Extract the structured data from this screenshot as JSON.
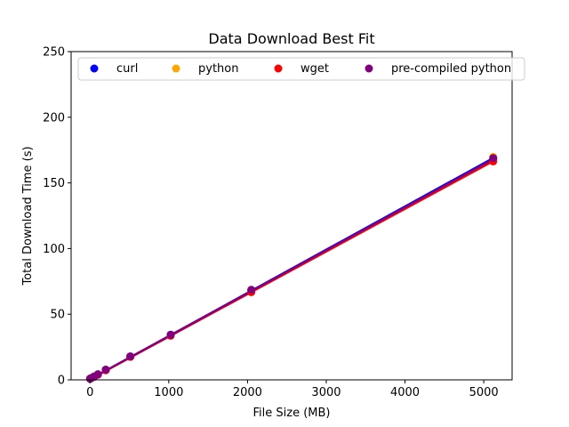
{
  "chart_data": {
    "type": "scatter",
    "title": "Data Download Best Fit",
    "xlabel": "File Size (MB)",
    "ylabel": "Total Download Time (s)",
    "xlim": [
      -240,
      5360
    ],
    "ylim": [
      0,
      250
    ],
    "xticks": [
      0,
      1000,
      2000,
      3000,
      4000,
      5000
    ],
    "yticks": [
      0,
      50,
      100,
      150,
      200,
      250
    ],
    "grid": false,
    "legend_placement": "top (upper center)",
    "x": [
      1,
      10,
      50,
      100,
      200,
      512,
      1024,
      2048,
      5120
    ],
    "series": [
      {
        "name": "curl",
        "color": "#0000ff",
        "values": [
          0.8,
          1.1,
          2.2,
          4.0,
          7.5,
          17.8,
          34.3,
          68.2,
          168.0
        ],
        "fit": [
          0.5,
          169.0
        ]
      },
      {
        "name": "python",
        "color": "#ffa500",
        "values": [
          0.9,
          1.2,
          2.4,
          4.1,
          7.7,
          17.6,
          34.0,
          67.8,
          169.8
        ],
        "fit": [
          0.4,
          167.8
        ]
      },
      {
        "name": "wget",
        "color": "#ff0000",
        "values": [
          0.8,
          1.1,
          2.3,
          3.9,
          7.3,
          17.5,
          33.6,
          66.8,
          166.4
        ],
        "fit": [
          0.3,
          166.5
        ]
      },
      {
        "name": "pre-compiled python",
        "color": "#800080",
        "values": [
          0.9,
          1.3,
          2.5,
          4.3,
          7.8,
          17.9,
          34.4,
          68.6,
          168.9
        ],
        "fit": [
          0.6,
          168.0
        ]
      }
    ]
  }
}
